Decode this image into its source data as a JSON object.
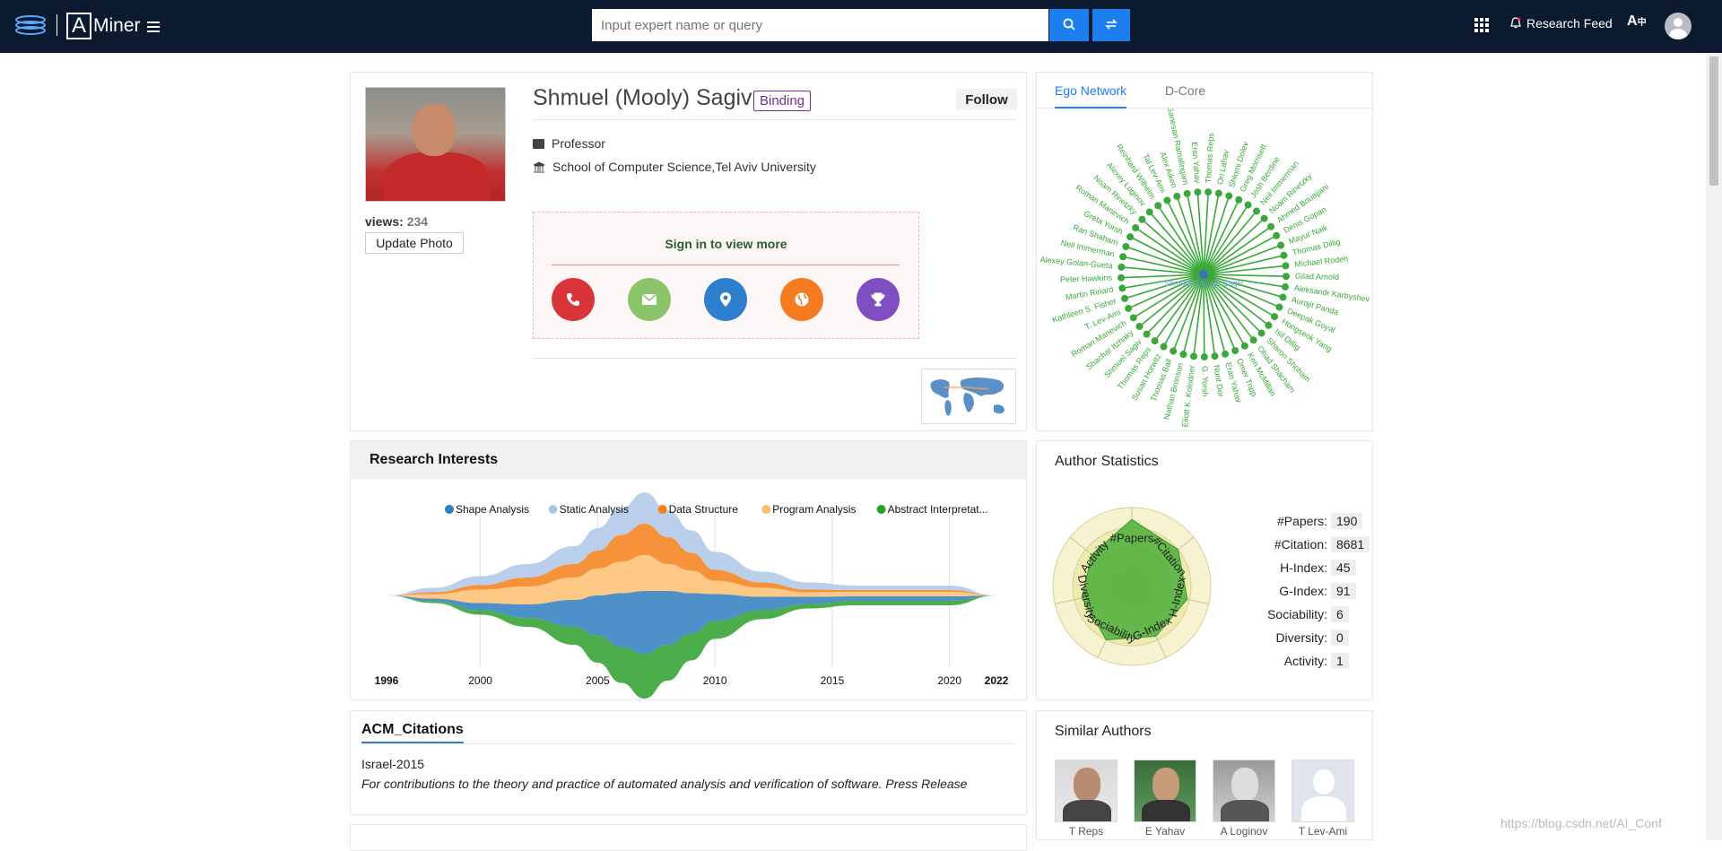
{
  "header": {
    "brand": "Miner",
    "search_placeholder": "Input expert name or query",
    "feed_label": "Research Feed",
    "icons": [
      "aminer-logo",
      "menu-icon",
      "search-icon",
      "swap-icon",
      "apps-icon",
      "bell-icon",
      "translate-icon",
      "user-icon"
    ]
  },
  "profile": {
    "name": "Shmuel (Mooly) Sagiv",
    "binding_label": "Binding",
    "follow_label": "Follow",
    "views_label": "views:",
    "views": "234",
    "update_photo_label": "Update Photo",
    "position": "Professor",
    "affiliation": "School of Computer Science,Tel Aviv University",
    "sign_in_text": "Sign in to view more",
    "contact_icons": [
      {
        "name": "phone-icon",
        "color": "#d9343a"
      },
      {
        "name": "email-icon",
        "color": "#8cc46c"
      },
      {
        "name": "location-icon",
        "color": "#2f7fcf"
      },
      {
        "name": "globe-icon",
        "color": "#f47b20"
      },
      {
        "name": "trophy-icon",
        "color": "#7f4fc1"
      }
    ]
  },
  "ego_network": {
    "tabs": [
      "Ego Network",
      "D-Core"
    ],
    "center": "Shmuel (Mooly) Sagiv",
    "color": "#3aa83a",
    "nodes": [
      "Ori Lahav",
      "Shlomi Dolev",
      "Greg Morrisett",
      "Josh Berdine",
      "Neil Immerman",
      "Noam Rinetzky",
      "Ahmed Bouajjani",
      "Denis Gopan",
      "Mayur Naik",
      "Thomas Dillig",
      "Michael Rodeh",
      "Gilad Arnold",
      "Aleksandr Karbyshev",
      "Aurojit Panda",
      "Deepak Goyal",
      "Hongseok Yang",
      "Isil Dillig",
      "Sharon Shoham",
      "Ohad Shacham",
      "Ken McMillan",
      "Omer Tripp",
      "Eran Yahav",
      "Nurit Dor",
      "G. Yorsh",
      "Eliott K. Kolodner",
      "Nathan Bronson",
      "Thomas Ball",
      "Susan Horwitz",
      "Thomas Reps",
      "Shmuel Sagiv",
      "Shachar Itzhaky",
      "Roman Manevich",
      "T. Lev-Ami",
      "Kathleen S. Fisher",
      "Martin Rinard",
      "Peter Hawkins",
      "Alexey Golan-Gueta",
      "Neil Immerman",
      "Ran Shaham",
      "Greta Yorsh",
      "Roman Manevich",
      "Noam Rinetzky",
      "Alexey Loginov",
      "Reinhard Wilhelm",
      "Tal Lev-Ami",
      "Alex Aiken",
      "Ganesan Ramalingam",
      "Eran Yahav",
      "Thomas Reps"
    ]
  },
  "research_interests": {
    "title": "Research Interests"
  },
  "author_stats": {
    "title": "Author Statistics",
    "radar_labels": [
      "#Papers",
      "#Citation",
      "H-Index",
      "G-Index",
      "Sociability",
      "Diversity",
      "Activity"
    ],
    "rows": [
      {
        "label": "#Papers:",
        "value": "190"
      },
      {
        "label": "#Citation:",
        "value": "8681"
      },
      {
        "label": "H-Index:",
        "value": "45"
      },
      {
        "label": "G-Index:",
        "value": "91"
      },
      {
        "label": "Sociability:",
        "value": "6"
      },
      {
        "label": "Diversity:",
        "value": "0"
      },
      {
        "label": "Activity:",
        "value": "1"
      }
    ]
  },
  "acm": {
    "tab": "ACM_Citations",
    "year": "Israel-2015",
    "description": "For contributions to the theory and practice of automated analysis and verification of software. Press Release"
  },
  "similar": {
    "title": "Similar Authors",
    "authors": [
      "T Reps",
      "E Yahav",
      "A Loginov",
      "T Lev-Ami"
    ]
  },
  "watermark": "https://blog.csdn.net/AI_Conf",
  "chart_data": {
    "type": "area",
    "title": "",
    "x": [
      1996,
      1998,
      2000,
      2002,
      2004,
      2005,
      2006,
      2007,
      2008,
      2009,
      2010,
      2012,
      2014,
      2016,
      2018,
      2020,
      2022
    ],
    "x_tick_labels": [
      "1996",
      "2000",
      "2005",
      "2010",
      "2015",
      "2020",
      "2022"
    ],
    "xlim": [
      1996,
      2022
    ],
    "legend_position": "top",
    "series": [
      {
        "name": "Shape Analysis",
        "color": "#2f7ebf",
        "values": [
          0,
          0.3,
          0.8,
          1.5,
          3,
          4.5,
          6,
          7,
          6,
          4.5,
          3,
          1.5,
          0.8,
          0.5,
          0.5,
          0.5,
          0
        ]
      },
      {
        "name": "Static Analysis",
        "color": "#aec7e8",
        "values": [
          0,
          0.5,
          1,
          1.5,
          2,
          2.5,
          3,
          3.5,
          3,
          2.5,
          2,
          1.2,
          0.8,
          0.5,
          0.5,
          0.5,
          0
        ]
      },
      {
        "name": "Data Structure",
        "color": "#f57f17",
        "values": [
          0,
          0.2,
          0.5,
          1,
          1.5,
          2,
          3,
          3.5,
          3,
          2,
          1.2,
          0.6,
          0.3,
          0.2,
          0.2,
          0.2,
          0
        ]
      },
      {
        "name": "Program Analysis",
        "color": "#fdbf6f",
        "values": [
          0,
          0.5,
          1.5,
          2,
          2.5,
          3,
          3.5,
          4,
          3,
          2.5,
          1.5,
          1,
          0.5,
          0.5,
          0.5,
          0.5,
          0
        ]
      },
      {
        "name": "Abstract Interpretat...",
        "color": "#2ca02c",
        "values": [
          0,
          0.2,
          0.5,
          1,
          2,
          3,
          4,
          5,
          4,
          3,
          2,
          1,
          0.5,
          0.5,
          0.5,
          0.5,
          0
        ]
      }
    ]
  }
}
